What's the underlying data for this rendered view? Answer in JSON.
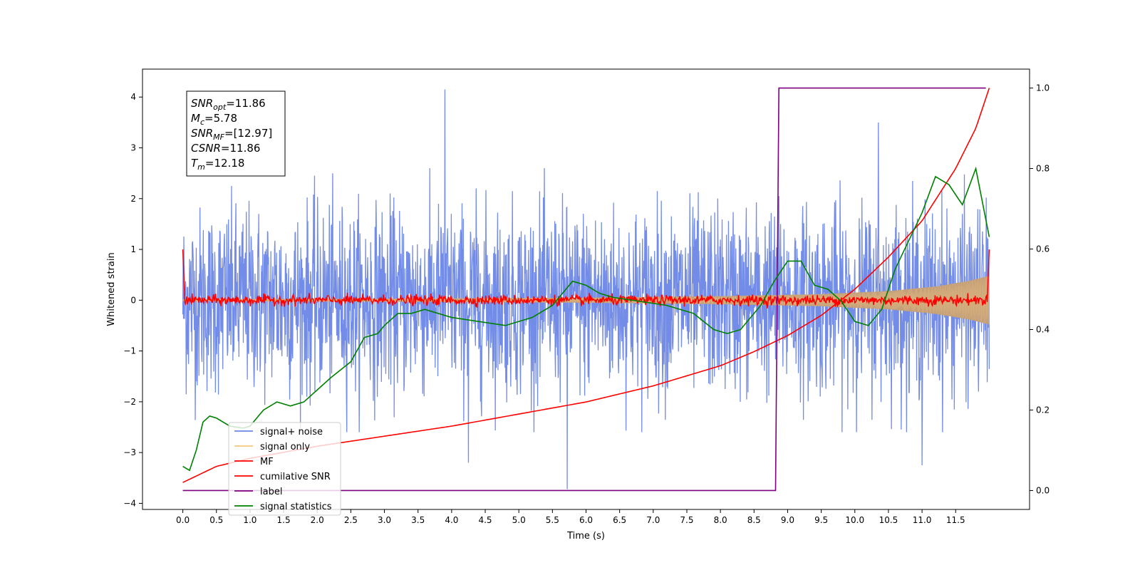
{
  "chart_data": {
    "type": "line",
    "title": "",
    "xlabel": "Time (s)",
    "ylabel": "Whitened strain",
    "y2label": "",
    "xlim": [
      -0.6,
      12.6
    ],
    "ylim": [
      -4.12,
      4.55
    ],
    "y2lim": [
      -0.047,
      1.047
    ],
    "x_ticks": [
      0.0,
      0.5,
      1.0,
      1.5,
      2.0,
      2.5,
      3.0,
      3.5,
      4.0,
      4.5,
      5.0,
      5.5,
      6.0,
      6.5,
      7.0,
      7.5,
      8.0,
      8.5,
      9.0,
      9.5,
      10.0,
      10.5,
      11.0,
      11.5
    ],
    "x_tick_labels": [
      "0.0",
      "0.5",
      "1.0",
      "1.5",
      "2.0",
      "2.5",
      "3.0",
      "3.5",
      "4.0",
      "4.5",
      "5.0",
      "5.5",
      "6.0",
      "6.5",
      "7.0",
      "7.5",
      "8.0",
      "8.5",
      "9.0",
      "9.5",
      "10.0",
      "10.5",
      "11.0",
      "11.5"
    ],
    "y_ticks": [
      -4,
      -3,
      -2,
      -1,
      0,
      1,
      2,
      3,
      4
    ],
    "y_tick_labels": [
      "−4",
      "−3",
      "−2",
      "−1",
      "0",
      "1",
      "2",
      "3",
      "4"
    ],
    "y2_ticks": [
      0.0,
      0.2,
      0.4,
      0.6,
      0.8,
      1.0
    ],
    "y2_tick_labels": [
      "0.0",
      "0.2",
      "0.4",
      "0.6",
      "0.8",
      "1.0"
    ],
    "grid": false,
    "legend_placement": "lower-left",
    "annotation_box": {
      "lines": [
        {
          "sym": "SNR",
          "sub": "opt",
          "val": "=11.86"
        },
        {
          "sym": "M",
          "sub": "c",
          "val": "=5.78"
        },
        {
          "sym": "SNR",
          "sub": "MF",
          "val": "=[12.97]"
        },
        {
          "sym": "CSNR",
          "sub": "",
          "val": "=11.86"
        },
        {
          "sym": "T",
          "sub": "m",
          "val": "=12.18"
        }
      ]
    },
    "series": [
      {
        "name": "signal+ noise",
        "axis": "left",
        "color": "#6b86e6",
        "kind": "noise",
        "sigma": 0.9,
        "n": 2400,
        "x_start": 0.0,
        "x_end": 12.0,
        "spikes": [
          {
            "x": 3.9,
            "y": 4.15
          },
          {
            "x": 5.72,
            "y": -3.72
          },
          {
            "x": 4.25,
            "y": -3.2
          },
          {
            "x": 11.0,
            "y": -3.25
          },
          {
            "x": 10.35,
            "y": 3.5
          }
        ]
      },
      {
        "name": "signal only",
        "axis": "left",
        "color": "#f5c880",
        "kind": "chirp_envelope",
        "x": [
          0.0,
          3.0,
          6.0,
          8.0,
          9.5,
          10.5,
          11.2,
          11.7,
          12.0
        ],
        "amplitude": [
          0.02,
          0.03,
          0.05,
          0.08,
          0.12,
          0.18,
          0.27,
          0.38,
          0.48
        ]
      },
      {
        "name": "MF",
        "axis": "left",
        "color": "#ff0000",
        "kind": "mf",
        "start_peak": 1.0,
        "end_peak": 1.0,
        "noise_amplitude": 0.07
      },
      {
        "name": "cumilative SNR",
        "axis": "right",
        "color": "#ff0000",
        "kind": "line",
        "x": [
          0.0,
          0.5,
          1.0,
          2.0,
          3.0,
          4.0,
          5.0,
          6.0,
          7.0,
          8.0,
          8.5,
          9.0,
          9.5,
          10.0,
          10.5,
          11.0,
          11.5,
          11.8,
          12.0
        ],
        "y": [
          0.02,
          0.06,
          0.08,
          0.11,
          0.135,
          0.16,
          0.19,
          0.22,
          0.26,
          0.31,
          0.345,
          0.385,
          0.435,
          0.5,
          0.58,
          0.67,
          0.8,
          0.9,
          1.0
        ]
      },
      {
        "name": "label",
        "axis": "right",
        "color": "#800080",
        "kind": "line",
        "x": [
          0.0,
          8.82,
          8.87,
          11.95
        ],
        "y": [
          0.0,
          0.0,
          1.0,
          1.0
        ]
      },
      {
        "name": "signal statistics",
        "axis": "right",
        "color": "#008000",
        "kind": "line",
        "x": [
          0.0,
          0.1,
          0.2,
          0.3,
          0.4,
          0.5,
          0.7,
          0.9,
          1.0,
          1.1,
          1.2,
          1.4,
          1.6,
          1.8,
          2.0,
          2.2,
          2.5,
          2.7,
          2.9,
          3.0,
          3.2,
          3.4,
          3.6,
          4.0,
          4.4,
          4.8,
          5.2,
          5.5,
          5.8,
          6.0,
          6.2,
          6.4,
          6.8,
          7.2,
          7.6,
          7.9,
          8.1,
          8.3,
          8.6,
          8.8,
          9.0,
          9.2,
          9.4,
          9.6,
          9.8,
          10.0,
          10.2,
          10.4,
          10.6,
          10.8,
          11.0,
          11.2,
          11.4,
          11.6,
          11.8,
          12.0
        ],
        "y": [
          0.06,
          0.05,
          0.1,
          0.17,
          0.185,
          0.18,
          0.16,
          0.155,
          0.16,
          0.18,
          0.2,
          0.22,
          0.21,
          0.22,
          0.25,
          0.28,
          0.32,
          0.38,
          0.39,
          0.41,
          0.44,
          0.44,
          0.45,
          0.43,
          0.42,
          0.41,
          0.43,
          0.46,
          0.52,
          0.51,
          0.49,
          0.48,
          0.47,
          0.46,
          0.44,
          0.4,
          0.39,
          0.4,
          0.46,
          0.52,
          0.57,
          0.57,
          0.51,
          0.5,
          0.47,
          0.42,
          0.41,
          0.45,
          0.55,
          0.62,
          0.69,
          0.78,
          0.76,
          0.71,
          0.8,
          0.63
        ]
      }
    ]
  }
}
